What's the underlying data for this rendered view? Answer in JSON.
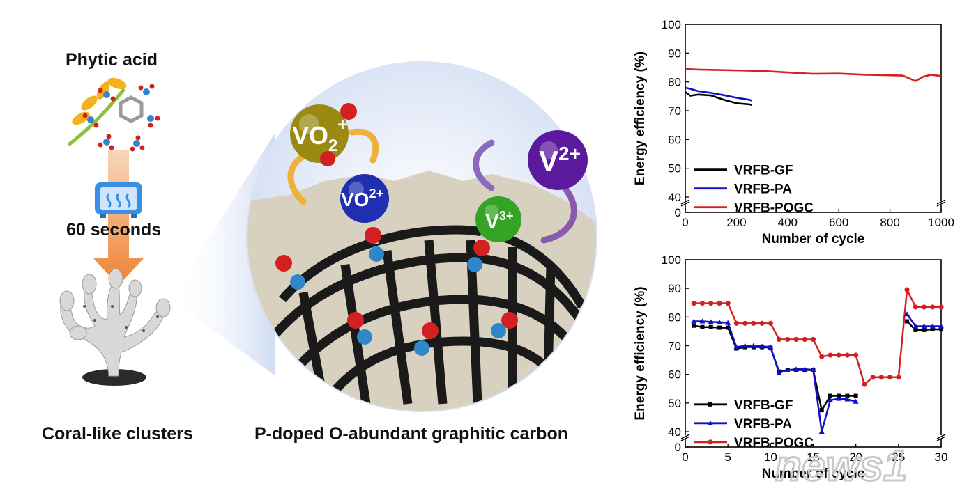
{
  "schematic": {
    "precursor_label": "Phytic acid",
    "process_label": "60 seconds",
    "product_label": "Coral-like clusters",
    "material_label": "P-doped O-abundant graphitic carbon",
    "ions": {
      "vo2_plus": "VO",
      "vo2_plus_sub": "2",
      "vo2_plus_sup": "+",
      "vo_2plus": "VO",
      "vo_2plus_sup": "2+",
      "v_3plus": "V",
      "v_3plus_sup": "3+",
      "v_2plus": "V",
      "v_2plus_sup": "2+"
    },
    "colors": {
      "carbon": "#1a1a1a",
      "oxygen": "#d42020",
      "phosphorus": "#2f86c8",
      "vo2_sphere": "#9a8a14",
      "vo_sphere": "#1f2fb0",
      "v3_sphere": "#35a326",
      "v2_sphere": "#5b1a9e",
      "arrow": "#f08a3c",
      "bubble": "#dce6f6"
    }
  },
  "watermark": {
    "text": "news1"
  },
  "chart_data": [
    {
      "type": "line",
      "xlabel": "Number of cycle",
      "ylabel": "Energy efficiency (%)",
      "xlim": [
        0,
        1000
      ],
      "ylim": [
        0,
        100
      ],
      "axis_break": [
        0,
        40
      ],
      "xticks": [
        0,
        200,
        400,
        600,
        800,
        1000
      ],
      "yticks": [
        0,
        40,
        50,
        60,
        70,
        80,
        90,
        100
      ],
      "legend_position": "bottom-left",
      "series": [
        {
          "name": "VRFB-GF",
          "color": "#000000",
          "x": [
            0,
            20,
            50,
            100,
            150,
            200,
            250,
            260
          ],
          "y": [
            76.5,
            75.2,
            75.6,
            75.3,
            73.8,
            72.6,
            72.2,
            72
          ]
        },
        {
          "name": "VRFB-PA",
          "color": "#1010c8",
          "x": [
            0,
            20,
            50,
            100,
            150,
            200,
            250,
            260
          ],
          "y": [
            78,
            77.6,
            76.8,
            76.2,
            75.4,
            74.5,
            73.8,
            73.5
          ]
        },
        {
          "name": "VRFB-POGC",
          "color": "#d42020",
          "x": [
            0,
            50,
            100,
            200,
            300,
            400,
            500,
            600,
            700,
            800,
            850,
            900,
            930,
            960,
            1000
          ],
          "y": [
            84.5,
            84.3,
            84.2,
            84,
            83.8,
            83.3,
            82.8,
            82.9,
            82.5,
            82.3,
            82.2,
            80.3,
            81.8,
            82.5,
            82
          ]
        }
      ]
    },
    {
      "type": "line",
      "xlabel": "Number of cycle",
      "ylabel": "Energy efficiency (%)",
      "xlim": [
        0,
        30
      ],
      "ylim": [
        0,
        100
      ],
      "axis_break": [
        0,
        40
      ],
      "xticks": [
        0,
        5,
        10,
        15,
        20,
        25,
        30
      ],
      "yticks": [
        0,
        40,
        50,
        60,
        70,
        80,
        90,
        100
      ],
      "legend_position": "bottom-left",
      "series": [
        {
          "name": "VRFB-GF",
          "color": "#000000",
          "marker": "square",
          "x": [
            1,
            2,
            3,
            4,
            5,
            6,
            7,
            8,
            9,
            10,
            11,
            12,
            13,
            14,
            15,
            16,
            17,
            18,
            19,
            20
          ],
          "y": [
            77,
            76.5,
            76.5,
            76.3,
            76.3,
            69,
            69.5,
            69.5,
            69.5,
            69.3,
            61,
            61.5,
            61.5,
            61.5,
            61.5,
            47.5,
            52.5,
            52.5,
            52.5,
            52.5
          ]
        },
        {
          "name": "VRFB-PA",
          "color": "#1010c8",
          "marker": "triangle",
          "x": [
            1,
            2,
            3,
            4,
            5,
            6,
            7,
            8,
            9,
            10,
            11,
            12,
            13,
            14,
            15,
            16,
            17,
            18,
            19,
            20
          ],
          "y": [
            78.5,
            78.5,
            78.3,
            78.2,
            78,
            69.5,
            70,
            70,
            69.8,
            69.5,
            60.5,
            61.5,
            61.8,
            61.8,
            61.6,
            40,
            51,
            51.5,
            51.3,
            50.5
          ]
        },
        {
          "name": "VRFB-POGC",
          "color": "#d42020",
          "marker": "circle",
          "x": [
            1,
            2,
            3,
            4,
            5,
            6,
            7,
            8,
            9,
            10,
            11,
            12,
            13,
            14,
            15,
            16,
            17,
            18,
            19,
            20,
            21,
            22,
            23,
            24,
            25,
            26,
            27,
            28,
            29,
            30
          ],
          "y": [
            84.8,
            84.8,
            84.8,
            84.8,
            84.8,
            77.8,
            77.8,
            77.8,
            77.8,
            77.8,
            72.2,
            72.2,
            72.2,
            72.2,
            72.2,
            66.2,
            66.7,
            66.7,
            66.7,
            66.7,
            56.5,
            59,
            59,
            59,
            59,
            89.5,
            83.5,
            83.5,
            83.5,
            83.5
          ]
        }
      ],
      "tail_series": [
        {
          "name": "VRFB-GF",
          "x": [
            26,
            27,
            28,
            29,
            30
          ],
          "y": [
            78.5,
            75.5,
            75.5,
            75.7,
            75.7
          ]
        },
        {
          "name": "VRFB-PA",
          "x": [
            26,
            27,
            28,
            29,
            30
          ],
          "y": [
            81,
            76.8,
            76.8,
            76.8,
            76.8
          ]
        }
      ]
    }
  ]
}
